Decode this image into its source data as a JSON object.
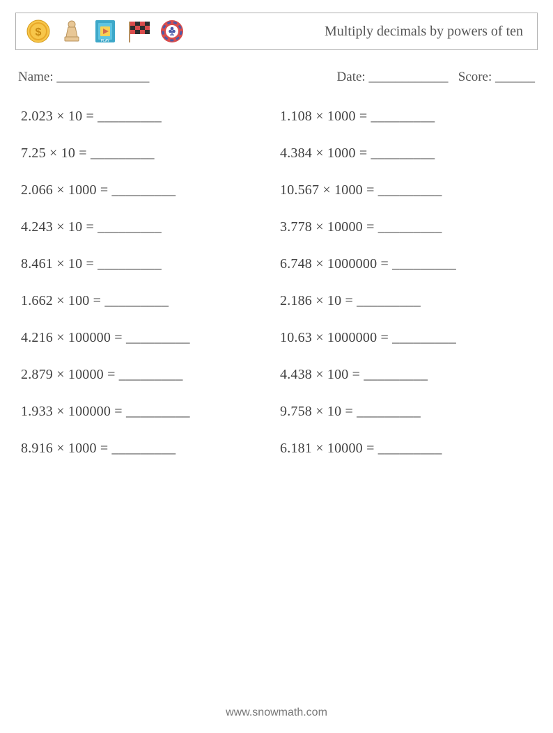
{
  "header": {
    "title": "Multiply decimals by powers of ten",
    "icons": [
      {
        "name": "coin-icon"
      },
      {
        "name": "chess-pawn-icon"
      },
      {
        "name": "play-card-icon"
      },
      {
        "name": "racing-flag-icon"
      },
      {
        "name": "poker-chip-icon"
      }
    ],
    "icon_colors": {
      "coin_outer": "#f7c64a",
      "coin_inner": "#e8a828",
      "pawn": "#e8c796",
      "card_bg": "#3da8c9",
      "card_play_bg": "#f7d154",
      "card_play_triangle": "#d46a4a",
      "flag": "#d94c4c",
      "flag_alt": "#2d2d2d",
      "flag_pole": "#b89060",
      "chip_outer": "#d94c4c",
      "chip_dash": "#4a5aa8",
      "chip_center": "#ffffff",
      "chip_club": "#4a5aa8"
    }
  },
  "meta": {
    "name_label": "Name:",
    "name_line": "______________",
    "date_label": "Date:",
    "date_line": "____________",
    "score_label": "Score:",
    "score_line": "______"
  },
  "layout": {
    "columns": 2,
    "font_size_problem": 20,
    "font_size_title": 20,
    "font_size_meta": 19,
    "text_color": "#404040",
    "border_color": "#b0b0b0",
    "background_color": "#ffffff",
    "row_gap": 30
  },
  "underline": "_________",
  "multiply_symbol": "×",
  "problems_left": [
    {
      "a": "2.023",
      "b": "10"
    },
    {
      "a": "7.25",
      "b": "10"
    },
    {
      "a": "2.066",
      "b": "1000"
    },
    {
      "a": "4.243",
      "b": "10"
    },
    {
      "a": "8.461",
      "b": "10"
    },
    {
      "a": "1.662",
      "b": "100"
    },
    {
      "a": "4.216",
      "b": "100000"
    },
    {
      "a": "2.879",
      "b": "10000"
    },
    {
      "a": "1.933",
      "b": "100000"
    },
    {
      "a": "8.916",
      "b": "1000"
    }
  ],
  "problems_right": [
    {
      "a": "1.108",
      "b": "1000"
    },
    {
      "a": "4.384",
      "b": "1000"
    },
    {
      "a": "10.567",
      "b": "1000"
    },
    {
      "a": "3.778",
      "b": "10000"
    },
    {
      "a": "6.748",
      "b": "1000000"
    },
    {
      "a": "2.186",
      "b": "10"
    },
    {
      "a": "10.63",
      "b": "1000000"
    },
    {
      "a": "4.438",
      "b": "100"
    },
    {
      "a": "9.758",
      "b": "10"
    },
    {
      "a": "6.181",
      "b": "10000"
    }
  ],
  "footer": {
    "text": "www.snowmath.com"
  }
}
